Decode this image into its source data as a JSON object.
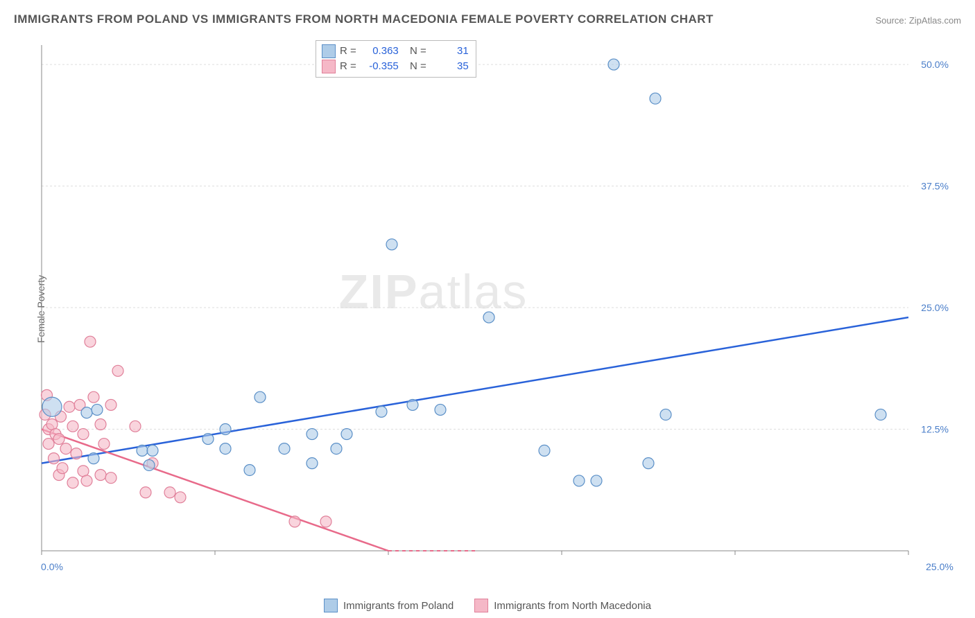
{
  "title": "IMMIGRANTS FROM POLAND VS IMMIGRANTS FROM NORTH MACEDONIA FEMALE POVERTY CORRELATION CHART",
  "source": "Source: ZipAtlas.com",
  "y_axis_label": "Female Poverty",
  "watermark": {
    "bold": "ZIP",
    "light": "atlas"
  },
  "chart": {
    "type": "scatter",
    "xlim": [
      0,
      25
    ],
    "ylim": [
      0,
      52
    ],
    "x_ticks": [
      0,
      25
    ],
    "x_tick_labels": [
      "0.0%",
      "25.0%"
    ],
    "y_ticks": [
      12.5,
      25,
      37.5,
      50
    ],
    "y_tick_labels": [
      "12.5%",
      "25.0%",
      "37.5%",
      "50.0%"
    ],
    "background_color": "#ffffff",
    "grid_color": "#dddddd",
    "series": [
      {
        "name": "Immigrants from Poland",
        "color_fill": "#aecce8",
        "color_stroke": "#5a8fc7",
        "trend_color": "#2962d9",
        "trend": {
          "x1": 0,
          "y1": 9.0,
          "x2": 25,
          "y2": 24.0
        },
        "R": "0.363",
        "N": "31",
        "points": [
          [
            0.3,
            14.8,
            14
          ],
          [
            1.3,
            14.2,
            8
          ],
          [
            1.5,
            9.5,
            8
          ],
          [
            1.6,
            14.5,
            8
          ],
          [
            2.9,
            10.3,
            8
          ],
          [
            3.1,
            8.8,
            8
          ],
          [
            3.2,
            10.3,
            8
          ],
          [
            4.8,
            11.5,
            8
          ],
          [
            5.3,
            10.5,
            8
          ],
          [
            5.3,
            12.5,
            8
          ],
          [
            6.0,
            8.3,
            8
          ],
          [
            6.3,
            15.8,
            8
          ],
          [
            7.0,
            10.5,
            8
          ],
          [
            7.8,
            9.0,
            8
          ],
          [
            7.8,
            12.0,
            8
          ],
          [
            8.5,
            10.5,
            8
          ],
          [
            8.8,
            12.0,
            8
          ],
          [
            9.8,
            14.3,
            8
          ],
          [
            10.1,
            31.5,
            8
          ],
          [
            10.7,
            15.0,
            8
          ],
          [
            11.5,
            14.5,
            8
          ],
          [
            12.9,
            24.0,
            8
          ],
          [
            14.5,
            10.3,
            8
          ],
          [
            15.5,
            7.2,
            8
          ],
          [
            16.0,
            7.2,
            8
          ],
          [
            16.5,
            50.0,
            8
          ],
          [
            17.5,
            9.0,
            8
          ],
          [
            17.7,
            46.5,
            8
          ],
          [
            18.0,
            14.0,
            8
          ],
          [
            24.2,
            14.0,
            8
          ]
        ]
      },
      {
        "name": "Immigrants from North Macedonia",
        "color_fill": "#f5b8c7",
        "color_stroke": "#e07f99",
        "trend_color": "#e86a8a",
        "trend": {
          "x1": 0,
          "y1": 12.5,
          "x2": 10,
          "y2": 0
        },
        "trend_dash_ext": {
          "x1": 10,
          "y1": 0,
          "x2": 12.6,
          "y2": 0
        },
        "R": "-0.355",
        "N": "35",
        "points": [
          [
            0.1,
            14.0,
            8
          ],
          [
            0.15,
            16.0,
            8
          ],
          [
            0.2,
            11.0,
            8
          ],
          [
            0.2,
            12.5,
            8
          ],
          [
            0.3,
            13.0,
            8
          ],
          [
            0.35,
            9.5,
            8
          ],
          [
            0.4,
            12.0,
            8
          ],
          [
            0.5,
            7.8,
            8
          ],
          [
            0.5,
            11.5,
            8
          ],
          [
            0.55,
            13.8,
            8
          ],
          [
            0.6,
            8.5,
            8
          ],
          [
            0.7,
            10.5,
            8
          ],
          [
            0.8,
            14.8,
            8
          ],
          [
            0.9,
            7.0,
            8
          ],
          [
            0.9,
            12.8,
            8
          ],
          [
            1.0,
            10.0,
            8
          ],
          [
            1.1,
            15.0,
            8
          ],
          [
            1.2,
            8.2,
            8
          ],
          [
            1.2,
            12.0,
            8
          ],
          [
            1.3,
            7.2,
            8
          ],
          [
            1.4,
            21.5,
            8
          ],
          [
            1.5,
            15.8,
            8
          ],
          [
            1.7,
            7.8,
            8
          ],
          [
            1.7,
            13.0,
            8
          ],
          [
            1.8,
            11.0,
            8
          ],
          [
            2.0,
            15.0,
            8
          ],
          [
            2.0,
            7.5,
            8
          ],
          [
            2.2,
            18.5,
            8
          ],
          [
            2.7,
            12.8,
            8
          ],
          [
            3.0,
            6.0,
            8
          ],
          [
            3.2,
            9.0,
            8
          ],
          [
            3.7,
            6.0,
            8
          ],
          [
            4.0,
            5.5,
            8
          ],
          [
            7.3,
            3.0,
            8
          ],
          [
            8.2,
            3.0,
            8
          ]
        ]
      }
    ]
  },
  "legend_bottom": {
    "s1": "Immigrants from Poland",
    "s2": "Immigrants from North Macedonia"
  },
  "stats_legend": {
    "r_label": "R =",
    "n_label": "N ="
  }
}
